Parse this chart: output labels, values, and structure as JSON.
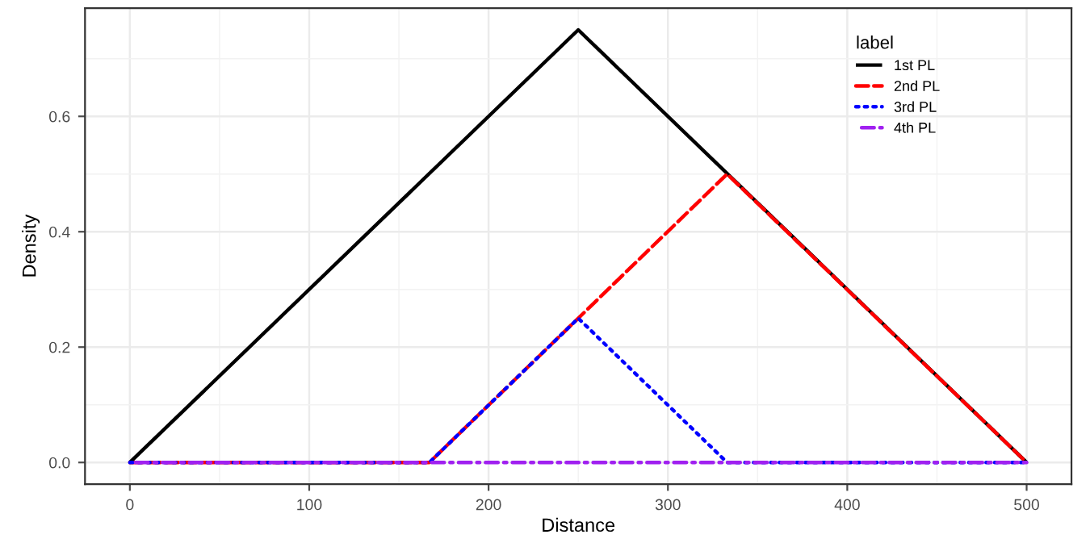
{
  "chart_data": {
    "type": "line",
    "xlabel": "Distance",
    "ylabel": "Density",
    "legend_title": "label",
    "series": [
      {
        "name": "1st PL",
        "color": "#000000",
        "line_style": "solid",
        "x": [
          0,
          250,
          500
        ],
        "values": [
          0,
          0.75,
          0
        ]
      },
      {
        "name": "2nd PL",
        "color": "#ff0000",
        "line_style": "dashed",
        "x": [
          0,
          167,
          333,
          500
        ],
        "values": [
          0,
          0,
          0.5,
          0
        ]
      },
      {
        "name": "3rd PL",
        "color": "#0000ff",
        "line_style": "dotted",
        "x": [
          0,
          167,
          250,
          333,
          500
        ],
        "values": [
          0,
          0,
          0.25,
          0,
          0
        ]
      },
      {
        "name": "4th PL",
        "color": "#a020f0",
        "line_style": "dashdot",
        "x": [
          0,
          500
        ],
        "values": [
          0,
          0
        ]
      }
    ],
    "xlim": [
      -25,
      525
    ],
    "xticks": [
      0,
      100,
      200,
      300,
      400,
      500
    ],
    "ylim": [
      -0.0375,
      0.7875
    ],
    "yticks": [
      {
        "value": 0,
        "label": "0.0"
      },
      {
        "value": 0.2,
        "label": "0.2"
      },
      {
        "value": 0.4,
        "label": "0.4"
      },
      {
        "value": 0.6,
        "label": "0.6"
      }
    ],
    "grid": true,
    "legend": "top right"
  }
}
